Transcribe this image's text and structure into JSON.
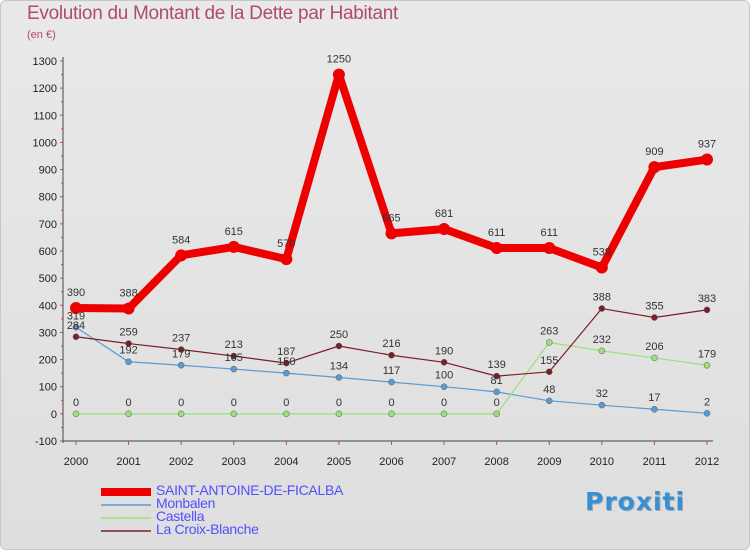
{
  "title": "Evolution du Montant de la Dette par Habitant",
  "unit_label": "(en €)",
  "logo_text": "Proxiti",
  "chart_data": {
    "type": "line",
    "title": "Evolution du Montant de la Dette par Habitant",
    "subtitle": "(en €)",
    "xlabel": "",
    "ylabel": "",
    "x": [
      "2000",
      "2001",
      "2002",
      "2003",
      "2004",
      "2005",
      "2006",
      "2007",
      "2008",
      "2009",
      "2010",
      "2011",
      "2012"
    ],
    "ylim": [
      -100,
      1300
    ],
    "yticks": [
      -100,
      0,
      100,
      200,
      300,
      400,
      500,
      600,
      700,
      800,
      900,
      1000,
      1100,
      1200,
      1300
    ],
    "grid": false,
    "legend_position": "bottom-left",
    "series": [
      {
        "name": "SAINT-ANTOINE-DE-FICALBA",
        "color": "#ee0000",
        "label_color": "#5050ff",
        "values": [
          390,
          388,
          584,
          615,
          570,
          1250,
          665,
          681,
          611,
          611,
          539,
          909,
          937
        ]
      },
      {
        "name": "Monbalen",
        "color": "#5a9bd4",
        "label_color": "#5050ff",
        "values": [
          319,
          192,
          179,
          165,
          150,
          134,
          117,
          100,
          81,
          48,
          32,
          17,
          2
        ]
      },
      {
        "name": "Castella",
        "color": "#9be07a",
        "label_color": "#5050ff",
        "values": [
          0,
          0,
          0,
          0,
          0,
          0,
          0,
          0,
          0,
          263,
          232,
          206,
          179
        ]
      },
      {
        "name": "La Croix-Blanche",
        "color": "#7a1e28",
        "label_color": "#5050ff",
        "values": [
          284,
          259,
          237,
          213,
          187,
          250,
          216,
          190,
          139,
          155,
          388,
          355,
          383
        ]
      }
    ]
  }
}
